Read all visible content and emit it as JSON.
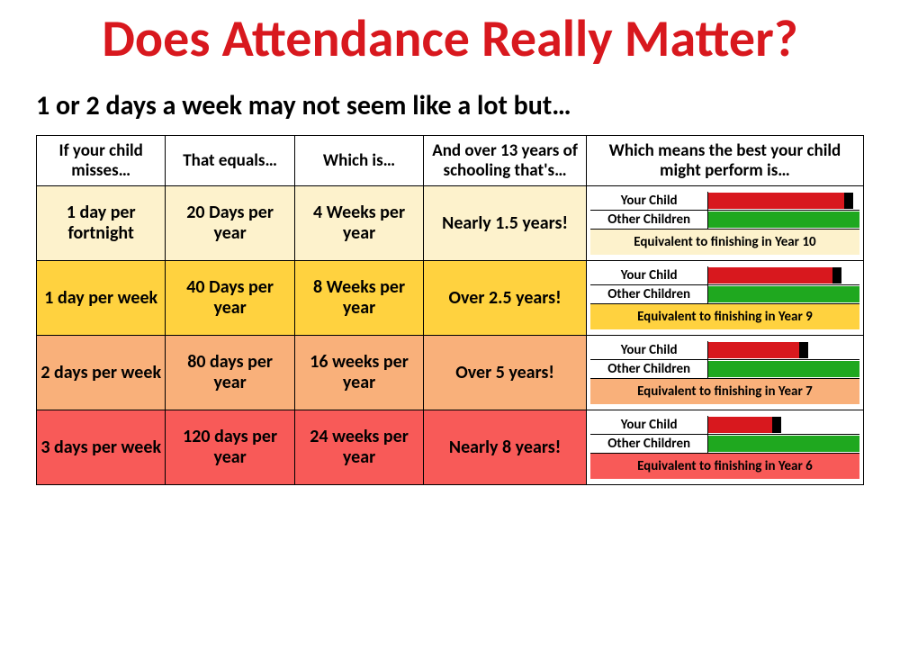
{
  "title": "Does Attendance Really Matter?",
  "subtitle": "1 or 2 days a week may not seem like a lot but…",
  "colors": {
    "title": "#d8181e",
    "subtitle": "#000000",
    "border": "#000000",
    "bar_child": "#d8181e",
    "bar_other": "#1fa81f",
    "bar_cap": "#000000",
    "row_bgs": [
      "#fdf2cc",
      "#ffd23f",
      "#f9b07a",
      "#f85a58"
    ]
  },
  "table": {
    "headers": [
      "If your child misses…",
      "That equals…",
      "Which is…",
      "And over 13 years of schooling that's…",
      "Which means the best your child might perform is…"
    ],
    "perf_labels": {
      "child": "Your Child",
      "other": "Other Children"
    },
    "bar_geometry": {
      "other_pct": 100,
      "cap_width_pct": 6
    },
    "rows": [
      {
        "misses": "1 day per fortnight",
        "equals": "20 Days per year",
        "which_is": "4 Weeks per year",
        "over_13": "Nearly 1.5 years!",
        "child_bar_pct": 90,
        "note": "Equivalent to finishing in Year 10",
        "bg": "#fdf2cc"
      },
      {
        "misses": "1 day per week",
        "equals": "40 Days per year",
        "which_is": "8 Weeks per year",
        "over_13": "Over 2.5 years!",
        "child_bar_pct": 82,
        "note": "Equivalent to finishing in Year 9",
        "bg": "#ffd23f"
      },
      {
        "misses": "2 days per week",
        "equals": "80 days per year",
        "which_is": "16 weeks per year",
        "over_13": "Over 5 years!",
        "child_bar_pct": 60,
        "note": "Equivalent to finishing in Year 7",
        "bg": "#f9b07a"
      },
      {
        "misses": "3 days per week",
        "equals": "120 days per year",
        "which_is": "24 weeks per year",
        "over_13": "Nearly 8 years!",
        "child_bar_pct": 42,
        "note": "Equivalent to finishing in Year 6",
        "bg": "#f85a58"
      }
    ]
  }
}
